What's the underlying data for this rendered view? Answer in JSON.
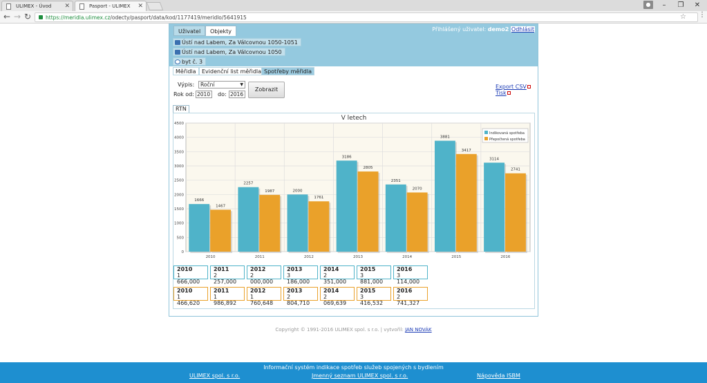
{
  "browser": {
    "tabs": [
      {
        "title": "ULIMEX - Úvod",
        "active": false
      },
      {
        "title": "Pasport - ULIMEX",
        "active": true
      }
    ],
    "url_secure": "https://meridla.ulimex.cz",
    "url_path": "/odecty/pasport/data/kod/1177419/meridlo/5641915",
    "icons": {
      "back": "back-arrow-icon",
      "forward": "forward-arrow-icon",
      "reload": "reload-icon",
      "lock": "lock-icon",
      "star": "star-icon",
      "menu": "menu-icon"
    }
  },
  "header": {
    "tabs": [
      "Uživatel",
      "Objekty"
    ],
    "login_label": "Přihlášený uživatel:",
    "username": "demo2",
    "logout": "Odhlásit"
  },
  "breadcrumbs": [
    "Ústí nad Labem, Za Válcovnou 1050-1051",
    "Ústí nad Labem, Za Válcovnou 1050",
    "byt č. 3"
  ],
  "subtabs": [
    "Měřidla",
    "Evidenční list měřidla",
    "Spotřeby měřidla"
  ],
  "filters": {
    "vypis_label": "Výpis:",
    "vypis_value": "Roční",
    "rok_od_label": "Rok od:",
    "rok_od": "2010",
    "do_label": "do:",
    "rok_do": "2016",
    "submit": "Zobrazit"
  },
  "export": {
    "csv": "Export CSV",
    "print": "Tisk"
  },
  "section_tab": "RTN",
  "colors": {
    "series1": "#4fb3c9",
    "series2": "#eaa12a",
    "header": "#94c9df",
    "footer": "#1e8fd0"
  },
  "chart_data": {
    "type": "bar",
    "title": "V letech",
    "categories": [
      "2010",
      "2011",
      "2012",
      "2013",
      "2014",
      "2015",
      "2016"
    ],
    "series": [
      {
        "name": "Indikovaná spotřeba",
        "values": [
          1666,
          2257,
          2000,
          3186,
          2351,
          3881,
          3114
        ]
      },
      {
        "name": "Přepočtená spotřeba",
        "values": [
          1467,
          1987,
          1761,
          2805,
          2070,
          3417,
          2741
        ]
      }
    ],
    "ylim": [
      0,
      4500
    ],
    "yticks": [
      0,
      500,
      1000,
      1500,
      2000,
      2500,
      3000,
      3500,
      4000,
      4500
    ],
    "legend": "top-right",
    "grid": true
  },
  "value_tables": [
    [
      {
        "year": "2010",
        "value": "1 666,000"
      },
      {
        "year": "2011",
        "value": "2 257,000"
      },
      {
        "year": "2012",
        "value": "2 000,000"
      },
      {
        "year": "2013",
        "value": "3 186,000"
      },
      {
        "year": "2014",
        "value": "2 351,000"
      },
      {
        "year": "2015",
        "value": "3 881,000"
      },
      {
        "year": "2016",
        "value": "3 114,000"
      }
    ],
    [
      {
        "year": "2010",
        "value": "1 466,620"
      },
      {
        "year": "2011",
        "value": "1 986,892"
      },
      {
        "year": "2012",
        "value": "1 760,648"
      },
      {
        "year": "2013",
        "value": "2 804,710"
      },
      {
        "year": "2014",
        "value": "2 069,639"
      },
      {
        "year": "2015",
        "value": "3 416,532"
      },
      {
        "year": "2016",
        "value": "2 741,327"
      }
    ]
  ],
  "copyright": {
    "text": "Copyright © 1991-2016 ULIMEX spol. s r.o. | vytvořil:",
    "author": "JAN NOVÁK"
  },
  "footer": {
    "title": "Informační systém indikace spotřeb služeb spojených s bydlením",
    "links": [
      "ULIMEX spol. s r.o.",
      "Jmenný seznam ULIMEX spol. s r.o.",
      "Nápověda ISBM"
    ]
  }
}
